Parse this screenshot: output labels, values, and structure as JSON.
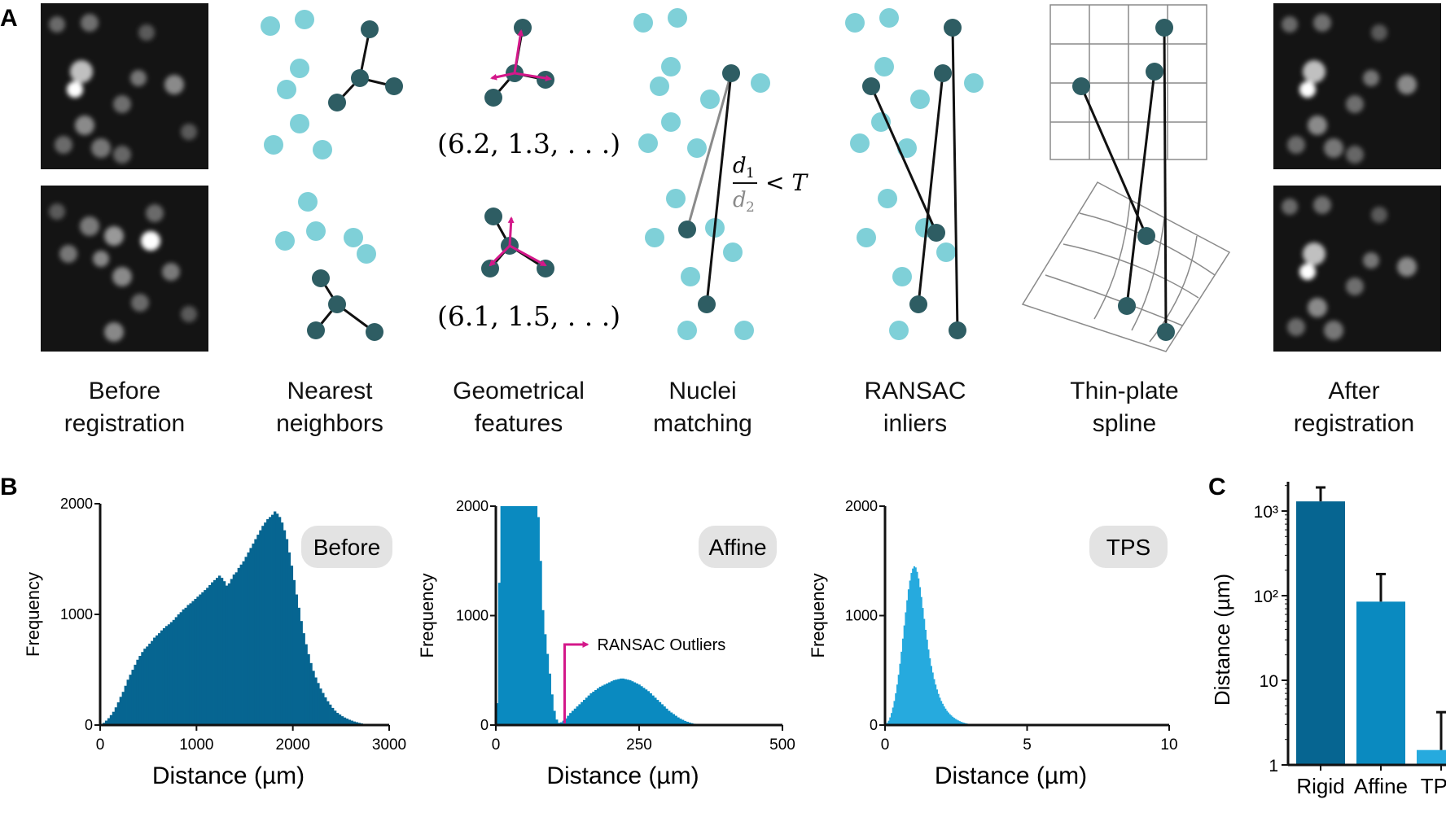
{
  "panel_labels": {
    "a": "A",
    "b": "B",
    "c": "C"
  },
  "steps": [
    {
      "line1": "Before",
      "line2": "registration"
    },
    {
      "line1": "Nearest",
      "line2": "neighbors"
    },
    {
      "line1": "Geometrical",
      "line2": "features"
    },
    {
      "line1": "Nuclei",
      "line2": "matching"
    },
    {
      "line1": "RANSAC",
      "line2": "inliers"
    },
    {
      "line1": "Thin-plate",
      "line2": "spline"
    },
    {
      "line1": "After",
      "line2": "registration"
    }
  ],
  "feature_vectors": {
    "top": "(6.2, 1.3, . . .)",
    "bottom": "(6.1, 1.5, . . .)"
  },
  "ratio_test": {
    "num": "d",
    "num_sub": "1",
    "den": "d",
    "den_sub": "2",
    "rhs": "< T"
  },
  "colors": {
    "nuclei_light": "#7fd0d8",
    "nuclei_dark": "#2e5d63",
    "magenta": "#d4188a",
    "before_bar": "#066591",
    "affine_bar": "#0a8ac0",
    "tps_bar": "#26aade",
    "label_bg": "#e3e3e3"
  },
  "chart_data": [
    {
      "type": "bar",
      "panel": "B",
      "badge": "Before",
      "xlabel": "Distance (µm)",
      "ylabel": "Frequency",
      "xlim": [
        0,
        3000
      ],
      "ylim": [
        0,
        2000
      ],
      "xticks": [
        "0",
        "1000",
        "2000",
        "3000"
      ],
      "yticks": [
        "0",
        "1000",
        "2000"
      ],
      "bin_width": 25,
      "values": [
        5,
        20,
        40,
        62,
        90,
        120,
        160,
        205,
        255,
        300,
        355,
        410,
        455,
        500,
        545,
        590,
        625,
        660,
        690,
        710,
        735,
        760,
        790,
        810,
        830,
        855,
        875,
        895,
        910,
        930,
        950,
        975,
        1000,
        1020,
        1045,
        1060,
        1085,
        1100,
        1120,
        1140,
        1160,
        1180,
        1200,
        1220,
        1240,
        1265,
        1290,
        1310,
        1330,
        1350,
        1330,
        1300,
        1260,
        1280,
        1320,
        1360,
        1380,
        1420,
        1450,
        1480,
        1520,
        1560,
        1600,
        1640,
        1680,
        1720,
        1760,
        1800,
        1830,
        1860,
        1880,
        1900,
        1930,
        1910,
        1880,
        1830,
        1760,
        1680,
        1560,
        1440,
        1310,
        1180,
        1060,
        940,
        830,
        730,
        640,
        560,
        490,
        430,
        380,
        330,
        290,
        250,
        215,
        185,
        155,
        130,
        110,
        95,
        80,
        68,
        58,
        48,
        40,
        32,
        26,
        20,
        15,
        10,
        7,
        5
      ]
    },
    {
      "type": "bar",
      "panel": "B",
      "badge": "Affine",
      "xlabel": "Distance (µm)",
      "ylabel": "Frequency",
      "xlim": [
        0,
        500
      ],
      "ylim": [
        0,
        2000
      ],
      "xticks": [
        "0",
        "250",
        "500"
      ],
      "yticks": [
        "0",
        "1000",
        "2000"
      ],
      "annotation": "RANSAC Outliers",
      "annotation_threshold": 120,
      "bin_width": 4,
      "values": [
        200,
        1300,
        2000,
        2000,
        2000,
        2000,
        2000,
        2000,
        2000,
        2000,
        2000,
        2000,
        2000,
        2000,
        2000,
        2000,
        2000,
        2000,
        1900,
        1500,
        1050,
        830,
        650,
        470,
        280,
        130,
        50,
        20,
        25,
        40,
        60,
        85,
        110,
        130,
        150,
        170,
        190,
        210,
        230,
        250,
        270,
        290,
        305,
        320,
        335,
        350,
        360,
        370,
        380,
        390,
        400,
        410,
        415,
        420,
        425,
        425,
        420,
        415,
        410,
        400,
        390,
        380,
        370,
        355,
        340,
        325,
        310,
        290,
        270,
        250,
        230,
        210,
        190,
        170,
        150,
        130,
        115,
        100,
        85,
        70,
        58,
        48,
        38,
        30,
        23,
        17,
        12,
        8,
        5,
        3
      ]
    },
    {
      "type": "bar",
      "panel": "B",
      "badge": "TPS",
      "xlabel": "Distance (µm)",
      "ylabel": "Frequency",
      "xlim": [
        0,
        10
      ],
      "ylim": [
        0,
        2000
      ],
      "xticks": [
        "0",
        "5",
        "10"
      ],
      "yticks": [
        "0",
        "1000",
        "2000"
      ],
      "bin_width": 0.05,
      "values": [
        10,
        20,
        40,
        70,
        110,
        160,
        220,
        290,
        370,
        460,
        560,
        670,
        790,
        910,
        1030,
        1140,
        1240,
        1320,
        1390,
        1430,
        1450,
        1440,
        1400,
        1340,
        1260,
        1170,
        1070,
        970,
        870,
        780,
        690,
        610,
        540,
        480,
        420,
        370,
        325,
        285,
        250,
        220,
        195,
        170,
        150,
        130,
        115,
        100,
        88,
        76,
        66,
        57,
        49,
        42,
        36,
        30,
        25,
        21,
        17,
        14,
        11,
        9,
        7,
        5,
        4,
        3
      ]
    },
    {
      "type": "bar",
      "panel": "C",
      "ylabel": "Distance (µm)",
      "yscale": "log",
      "ylim": [
        1,
        2000
      ],
      "yticks": [
        "1",
        "10",
        "10²",
        "10³"
      ],
      "categories": [
        "Rigid",
        "Affine",
        "TPS"
      ],
      "values": [
        1300,
        85,
        1.5
      ],
      "errors": [
        600,
        95,
        2.7
      ]
    }
  ]
}
